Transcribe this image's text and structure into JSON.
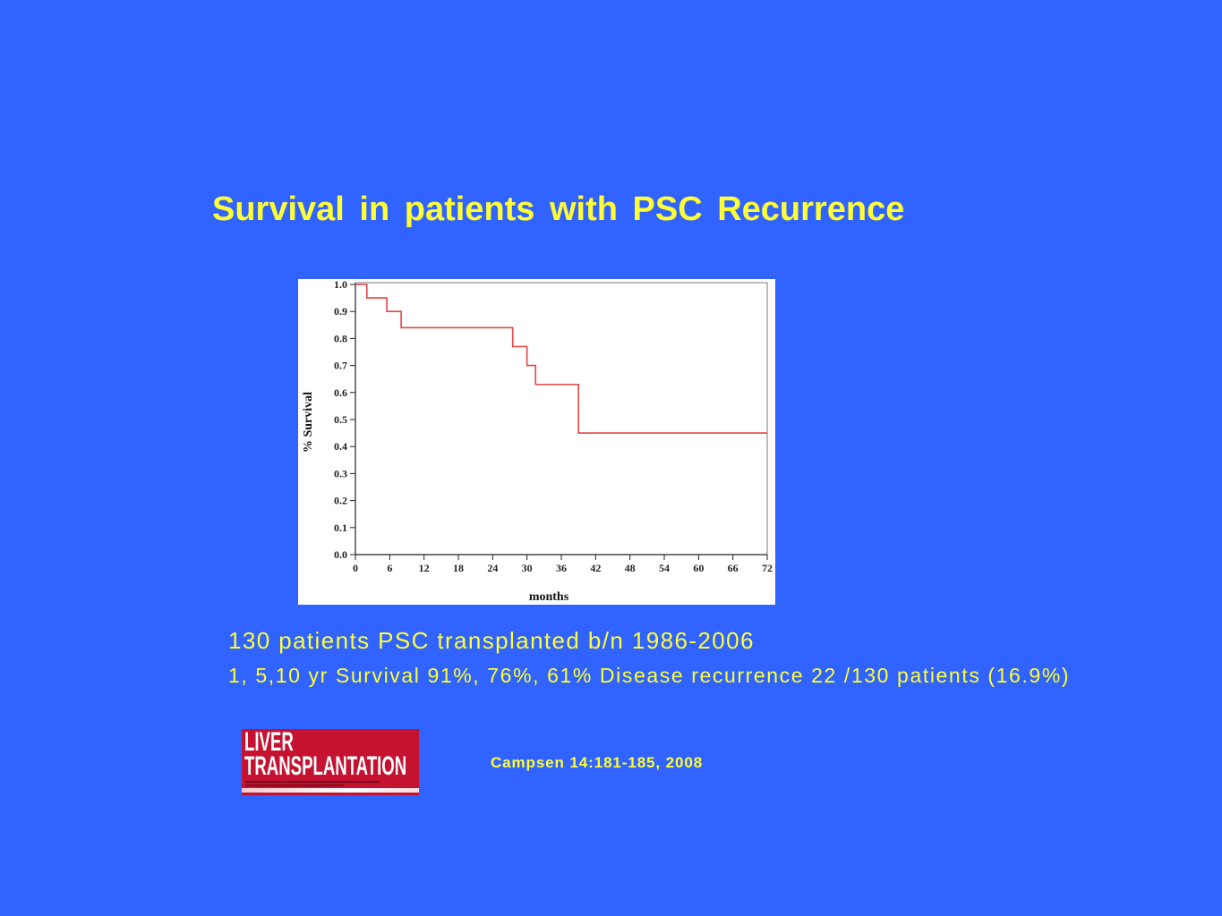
{
  "slide": {
    "title": "Survival in patients with PSC Recurrence",
    "line1": "130 patients PSC transplanted b/n 1986-2006",
    "line2": "1, 5,10 yr Survival 91%, 76%, 61% Disease recurrence 22 /130 patients (16.9%)",
    "citation": "Campsen 14:181-185, 2008"
  },
  "logo": {
    "line1": "LIVER",
    "line2": "TRANSPLANTATION"
  },
  "colors": {
    "background": "#3063FF",
    "text": "#FFFF33",
    "curve": "#E24646",
    "logo": "#C41230"
  },
  "chart_data": {
    "type": "line",
    "step": "post",
    "title": "",
    "xlabel": "months",
    "ylabel": "% Survival",
    "xlim": [
      0,
      72
    ],
    "ylim": [
      0,
      1.0
    ],
    "xticks": [
      "0",
      "6",
      "12",
      "18",
      "24",
      "30",
      "36",
      "42",
      "48",
      "54",
      "60",
      "66",
      "72"
    ],
    "yticks": [
      "0.0",
      "0.1",
      "0.2",
      "0.3",
      "0.4",
      "0.5",
      "0.6",
      "0.7",
      "0.8",
      "0.9",
      "1.0"
    ],
    "grid": false,
    "legend": "none",
    "series": [
      {
        "x": [
          0,
          2,
          5.5,
          8,
          27.5,
          30,
          31.5,
          39,
          72
        ],
        "y": [
          1.0,
          0.95,
          0.9,
          0.84,
          0.77,
          0.7,
          0.63,
          0.45,
          0.45
        ]
      }
    ]
  }
}
